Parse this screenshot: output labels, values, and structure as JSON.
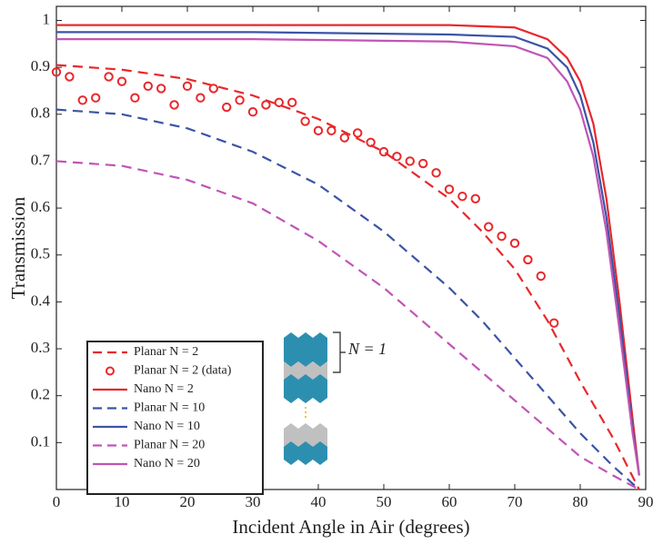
{
  "chart_data": {
    "type": "line",
    "xlabel": "Incident Angle in Air (degrees)",
    "ylabel": "Transmission",
    "xlim": [
      0,
      90
    ],
    "xticks": [
      0,
      10,
      20,
      30,
      40,
      50,
      60,
      70,
      80,
      90
    ],
    "ylim": [
      0,
      1.03
    ],
    "yticks": [
      0.1,
      0.2,
      0.3,
      0.4,
      0.5,
      0.6,
      0.7,
      0.8,
      0.9,
      1
    ],
    "legend": "lower left",
    "annotation": "N = 1",
    "series": [
      {
        "name": "Planar N = 2",
        "color": "#e8282b",
        "style": "dashed",
        "x": [
          0,
          10,
          20,
          30,
          40,
          50,
          60,
          65,
          70,
          75,
          80,
          85,
          89
        ],
        "values": [
          0.905,
          0.895,
          0.875,
          0.84,
          0.79,
          0.72,
          0.62,
          0.55,
          0.47,
          0.36,
          0.23,
          0.11,
          0.0
        ]
      },
      {
        "name": "Planar N = 2 (data)",
        "color": "#e8282b",
        "style": "markers",
        "x": [
          0,
          2,
          4,
          6,
          8,
          10,
          12,
          14,
          16,
          18,
          20,
          22,
          24,
          26,
          28,
          30,
          32,
          34,
          36,
          38,
          40,
          42,
          44,
          46,
          48,
          50,
          52,
          54,
          56,
          58,
          60,
          62,
          64,
          66,
          68,
          70,
          72,
          74,
          76
        ],
        "values": [
          0.89,
          0.88,
          0.83,
          0.835,
          0.88,
          0.87,
          0.835,
          0.86,
          0.855,
          0.82,
          0.86,
          0.835,
          0.855,
          0.815,
          0.83,
          0.805,
          0.82,
          0.825,
          0.825,
          0.785,
          0.765,
          0.765,
          0.75,
          0.76,
          0.74,
          0.72,
          0.71,
          0.7,
          0.695,
          0.675,
          0.64,
          0.625,
          0.62,
          0.56,
          0.54,
          0.525,
          0.49,
          0.455,
          0.355
        ]
      },
      {
        "name": "Nano N = 2",
        "color": "#e8282b",
        "style": "solid",
        "x": [
          0,
          30,
          60,
          70,
          75,
          78,
          80,
          82,
          84,
          86,
          88,
          89
        ],
        "values": [
          0.99,
          0.99,
          0.99,
          0.985,
          0.96,
          0.92,
          0.87,
          0.78,
          0.62,
          0.4,
          0.15,
          0.03
        ]
      },
      {
        "name": "Planar N = 10",
        "color": "#3b54a4",
        "style": "dashed",
        "x": [
          0,
          10,
          20,
          30,
          40,
          50,
          60,
          65,
          70,
          75,
          80,
          85,
          89
        ],
        "values": [
          0.81,
          0.8,
          0.77,
          0.72,
          0.65,
          0.55,
          0.43,
          0.36,
          0.28,
          0.2,
          0.12,
          0.05,
          0.0
        ]
      },
      {
        "name": "Nano N = 10",
        "color": "#3b54a4",
        "style": "solid",
        "x": [
          0,
          30,
          60,
          70,
          75,
          78,
          80,
          82,
          84,
          86,
          88,
          89
        ],
        "values": [
          0.975,
          0.975,
          0.97,
          0.965,
          0.94,
          0.9,
          0.84,
          0.74,
          0.58,
          0.37,
          0.13,
          0.03
        ]
      },
      {
        "name": "Planar N = 20",
        "color": "#c055b5",
        "style": "dashed",
        "x": [
          0,
          10,
          20,
          30,
          40,
          50,
          60,
          65,
          70,
          75,
          80,
          85,
          89
        ],
        "values": [
          0.7,
          0.69,
          0.66,
          0.61,
          0.53,
          0.43,
          0.31,
          0.25,
          0.19,
          0.13,
          0.07,
          0.03,
          0.0
        ]
      },
      {
        "name": "Nano N = 20",
        "color": "#c055b5",
        "style": "solid",
        "x": [
          0,
          30,
          60,
          70,
          75,
          78,
          80,
          82,
          84,
          86,
          88,
          89
        ],
        "values": [
          0.96,
          0.96,
          0.955,
          0.945,
          0.92,
          0.87,
          0.81,
          0.71,
          0.55,
          0.34,
          0.12,
          0.03
        ]
      }
    ]
  }
}
